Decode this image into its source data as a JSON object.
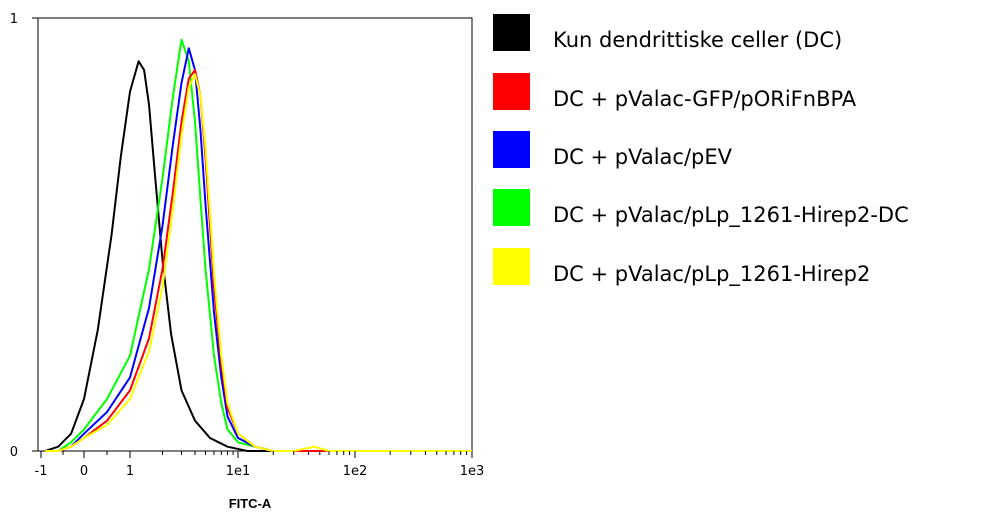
{
  "chart_data": {
    "type": "line",
    "title": "",
    "xlabel": "FITC-A",
    "ylabel": "",
    "x_scale": "biexponential",
    "x_ticks": [
      "-1",
      "0",
      "1",
      "1e1",
      "1e2",
      "1e3"
    ],
    "y_ticks": [
      "0",
      "1"
    ],
    "xlim": [
      -1,
      1000
    ],
    "ylim": [
      0,
      1
    ],
    "grid": false,
    "legend_position": "right",
    "series": [
      {
        "name": "Kun dendrittiske celler (DC)",
        "color": "#000000",
        "x": [
          -0.9,
          -0.6,
          -0.3,
          0,
          0.3,
          0.6,
          0.8,
          1.0,
          1.2,
          1.35,
          1.5,
          1.7,
          2.0,
          2.4,
          3.0,
          4.0,
          5.5,
          8.0,
          12.0,
          20.0,
          50.0,
          1000
        ],
        "y": [
          0.0,
          0.01,
          0.04,
          0.12,
          0.28,
          0.5,
          0.68,
          0.83,
          0.9,
          0.88,
          0.8,
          0.64,
          0.44,
          0.27,
          0.14,
          0.07,
          0.03,
          0.01,
          0.0,
          0.0,
          0.0,
          0.0
        ]
      },
      {
        "name": "DC + pValac-GFP/pORiFnBPA",
        "color": "#ff0000",
        "x": [
          -0.9,
          -0.6,
          -0.3,
          0,
          0.5,
          1.0,
          1.5,
          2.0,
          2.5,
          3.0,
          3.5,
          4.0,
          4.5,
          5.0,
          5.5,
          6.0,
          7.0,
          8.0,
          10.0,
          14.0,
          20.0,
          50.0,
          1000
        ],
        "y": [
          0.0,
          0.0,
          0.01,
          0.03,
          0.07,
          0.14,
          0.26,
          0.42,
          0.6,
          0.76,
          0.86,
          0.88,
          0.82,
          0.68,
          0.52,
          0.38,
          0.2,
          0.1,
          0.04,
          0.01,
          0.0,
          0.0,
          0.0
        ]
      },
      {
        "name": "DC + pValac/pEV",
        "color": "#0000ff",
        "x": [
          -0.9,
          -0.6,
          -0.3,
          0,
          0.5,
          1.0,
          1.5,
          2.0,
          2.5,
          3.0,
          3.5,
          4.0,
          4.5,
          5.0,
          6.0,
          7.0,
          8.0,
          10.0,
          14.0,
          20.0,
          50.0,
          1000
        ],
        "y": [
          0.0,
          0.0,
          0.01,
          0.04,
          0.09,
          0.17,
          0.33,
          0.52,
          0.71,
          0.85,
          0.93,
          0.88,
          0.74,
          0.57,
          0.32,
          0.17,
          0.08,
          0.03,
          0.01,
          0.0,
          0.0,
          0.0
        ]
      },
      {
        "name": "DC + pValac/pLp_1261-Hirep2-DC",
        "color": "#00ff00",
        "x": [
          -0.9,
          -0.6,
          -0.3,
          0,
          0.5,
          1.0,
          1.5,
          2.0,
          2.5,
          3.0,
          3.5,
          4.0,
          4.5,
          5.0,
          6.0,
          7.0,
          8.0,
          10.0,
          14.0,
          20.0,
          50.0,
          1000
        ],
        "y": [
          0.0,
          0.0,
          0.02,
          0.05,
          0.12,
          0.22,
          0.42,
          0.63,
          0.82,
          0.95,
          0.9,
          0.76,
          0.58,
          0.42,
          0.22,
          0.11,
          0.05,
          0.02,
          0.01,
          0.0,
          0.0,
          0.0
        ]
      },
      {
        "name": "DC + pValac/pLp_1261-Hirep2",
        "color": "#ffff00",
        "x": [
          -0.9,
          -0.6,
          -0.3,
          0,
          0.5,
          1.0,
          1.5,
          2.0,
          2.5,
          3.0,
          3.5,
          4.0,
          4.5,
          5.0,
          5.5,
          6.0,
          7.0,
          8.0,
          10.0,
          14.0,
          20.0,
          30.0,
          45.0,
          60.0,
          1000
        ],
        "y": [
          0.0,
          0.0,
          0.01,
          0.03,
          0.06,
          0.12,
          0.23,
          0.38,
          0.56,
          0.73,
          0.84,
          0.87,
          0.82,
          0.7,
          0.55,
          0.41,
          0.22,
          0.11,
          0.04,
          0.01,
          0.0,
          0.0,
          0.01,
          0.0,
          0.0
        ]
      }
    ]
  }
}
